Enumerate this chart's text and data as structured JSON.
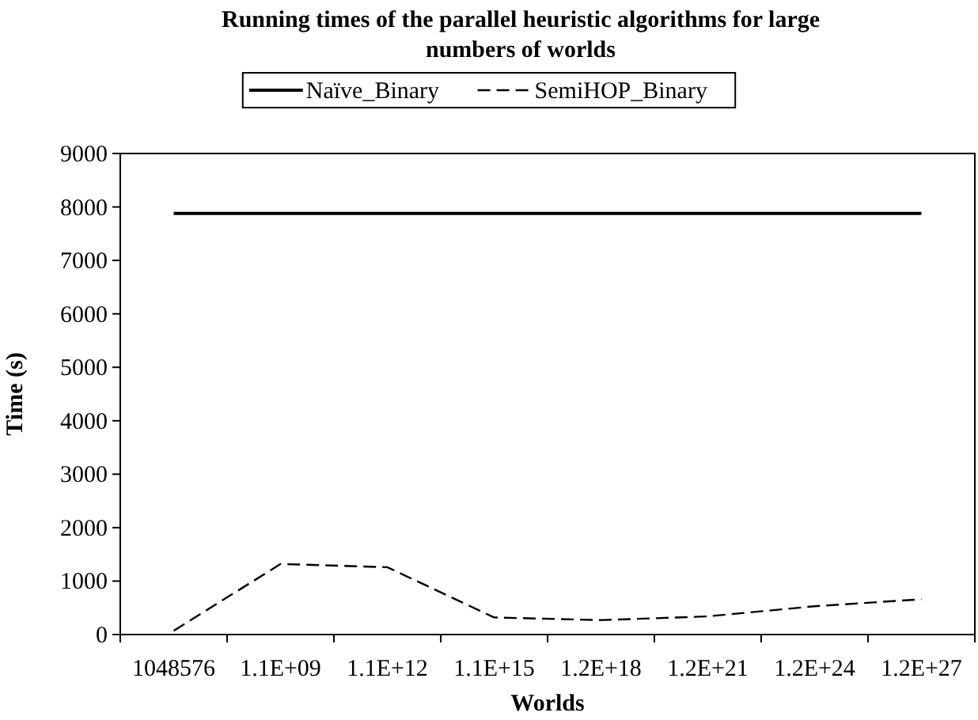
{
  "chart_data": {
    "type": "line",
    "title": "Running times of the parallel heuristic algorithms for large numbers of worlds",
    "xlabel": "Worlds",
    "ylabel": "Time (s)",
    "categories": [
      "1048576",
      "1.1E+09",
      "1.1E+12",
      "1.1E+15",
      "1.2E+18",
      "1.2E+21",
      "1.2E+24",
      "1.2E+27"
    ],
    "series": [
      {
        "name": "Naïve_Binary",
        "color": "#000000",
        "line_style": "solid",
        "values": [
          7880,
          7880,
          7880,
          7880,
          7880,
          7880,
          7880,
          7880
        ]
      },
      {
        "name": "SemiHOP_Binary",
        "color": "#000000",
        "line_style": "dashed",
        "values": [
          70,
          1320,
          1260,
          320,
          270,
          340,
          530,
          660
        ]
      }
    ],
    "ylim": [
      0,
      9000
    ],
    "yticks": [
      0,
      1000,
      2000,
      3000,
      4000,
      5000,
      6000,
      7000,
      8000,
      9000
    ],
    "grid": false,
    "legend": "top",
    "marker": "none"
  }
}
